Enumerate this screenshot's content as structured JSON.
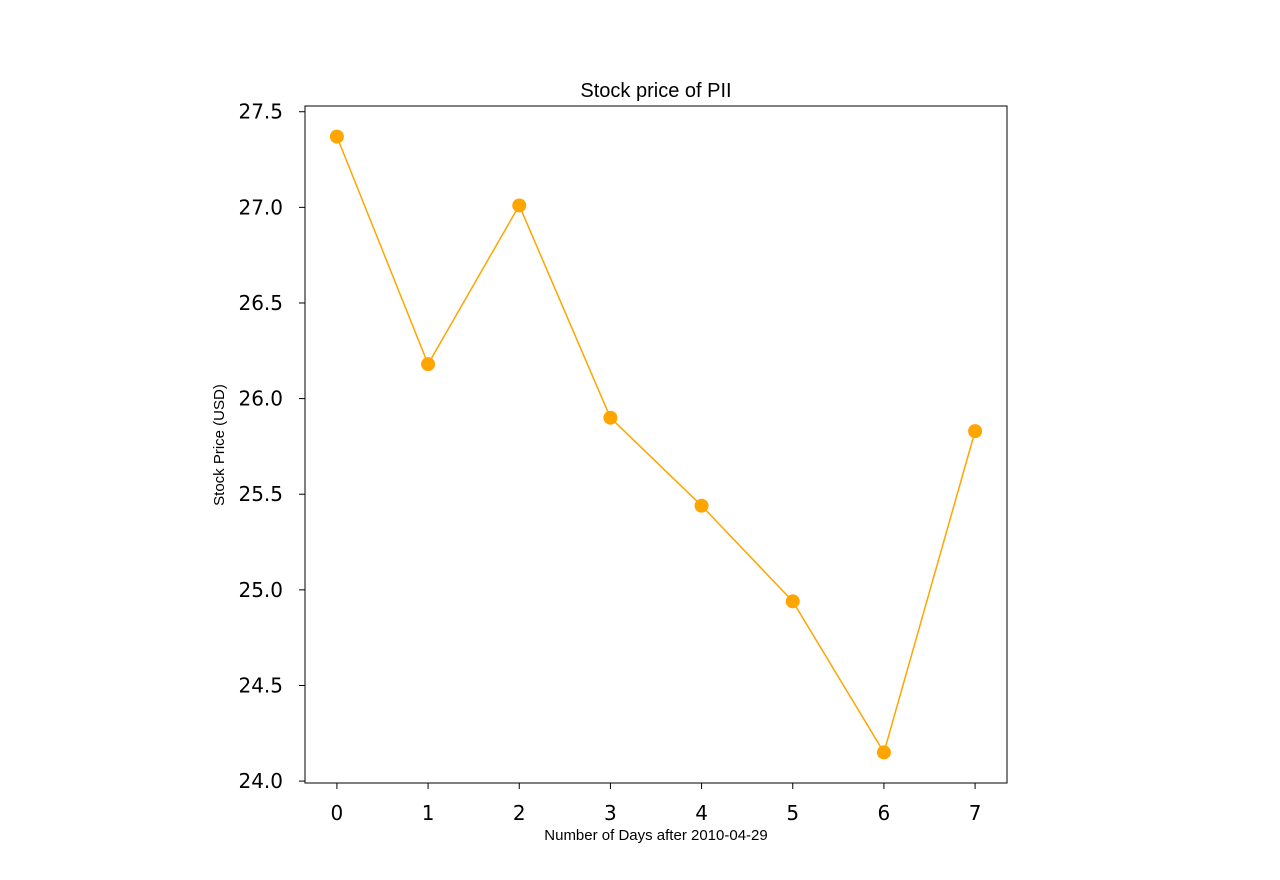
{
  "chart_data": {
    "type": "line",
    "title": "Stock price of PII",
    "xlabel": "Number of Days after 2010-04-29",
    "ylabel": "Stock Price (USD)",
    "x": [
      0,
      1,
      2,
      3,
      4,
      5,
      6,
      7
    ],
    "series": [
      {
        "values": [
          27.37,
          26.18,
          27.01,
          25.9,
          25.44,
          24.94,
          24.15,
          25.83
        ]
      }
    ],
    "xticks": [
      0,
      1,
      2,
      3,
      4,
      5,
      6,
      7
    ],
    "xtick_labels": [
      "0",
      "1",
      "2",
      "3",
      "4",
      "5",
      "6",
      "7"
    ],
    "yticks": [
      24.0,
      24.5,
      25.0,
      25.5,
      26.0,
      26.5,
      27.0,
      27.5
    ],
    "ytick_labels": [
      "24.0",
      "24.5",
      "25.0",
      "25.5",
      "26.0",
      "26.5",
      "27.0",
      "27.5"
    ],
    "xlim": [
      -0.35,
      7.35
    ],
    "ylim": [
      23.99,
      27.53
    ],
    "grid": false,
    "colors": {
      "line": "#ffa500",
      "marker": "#ffa500"
    }
  }
}
